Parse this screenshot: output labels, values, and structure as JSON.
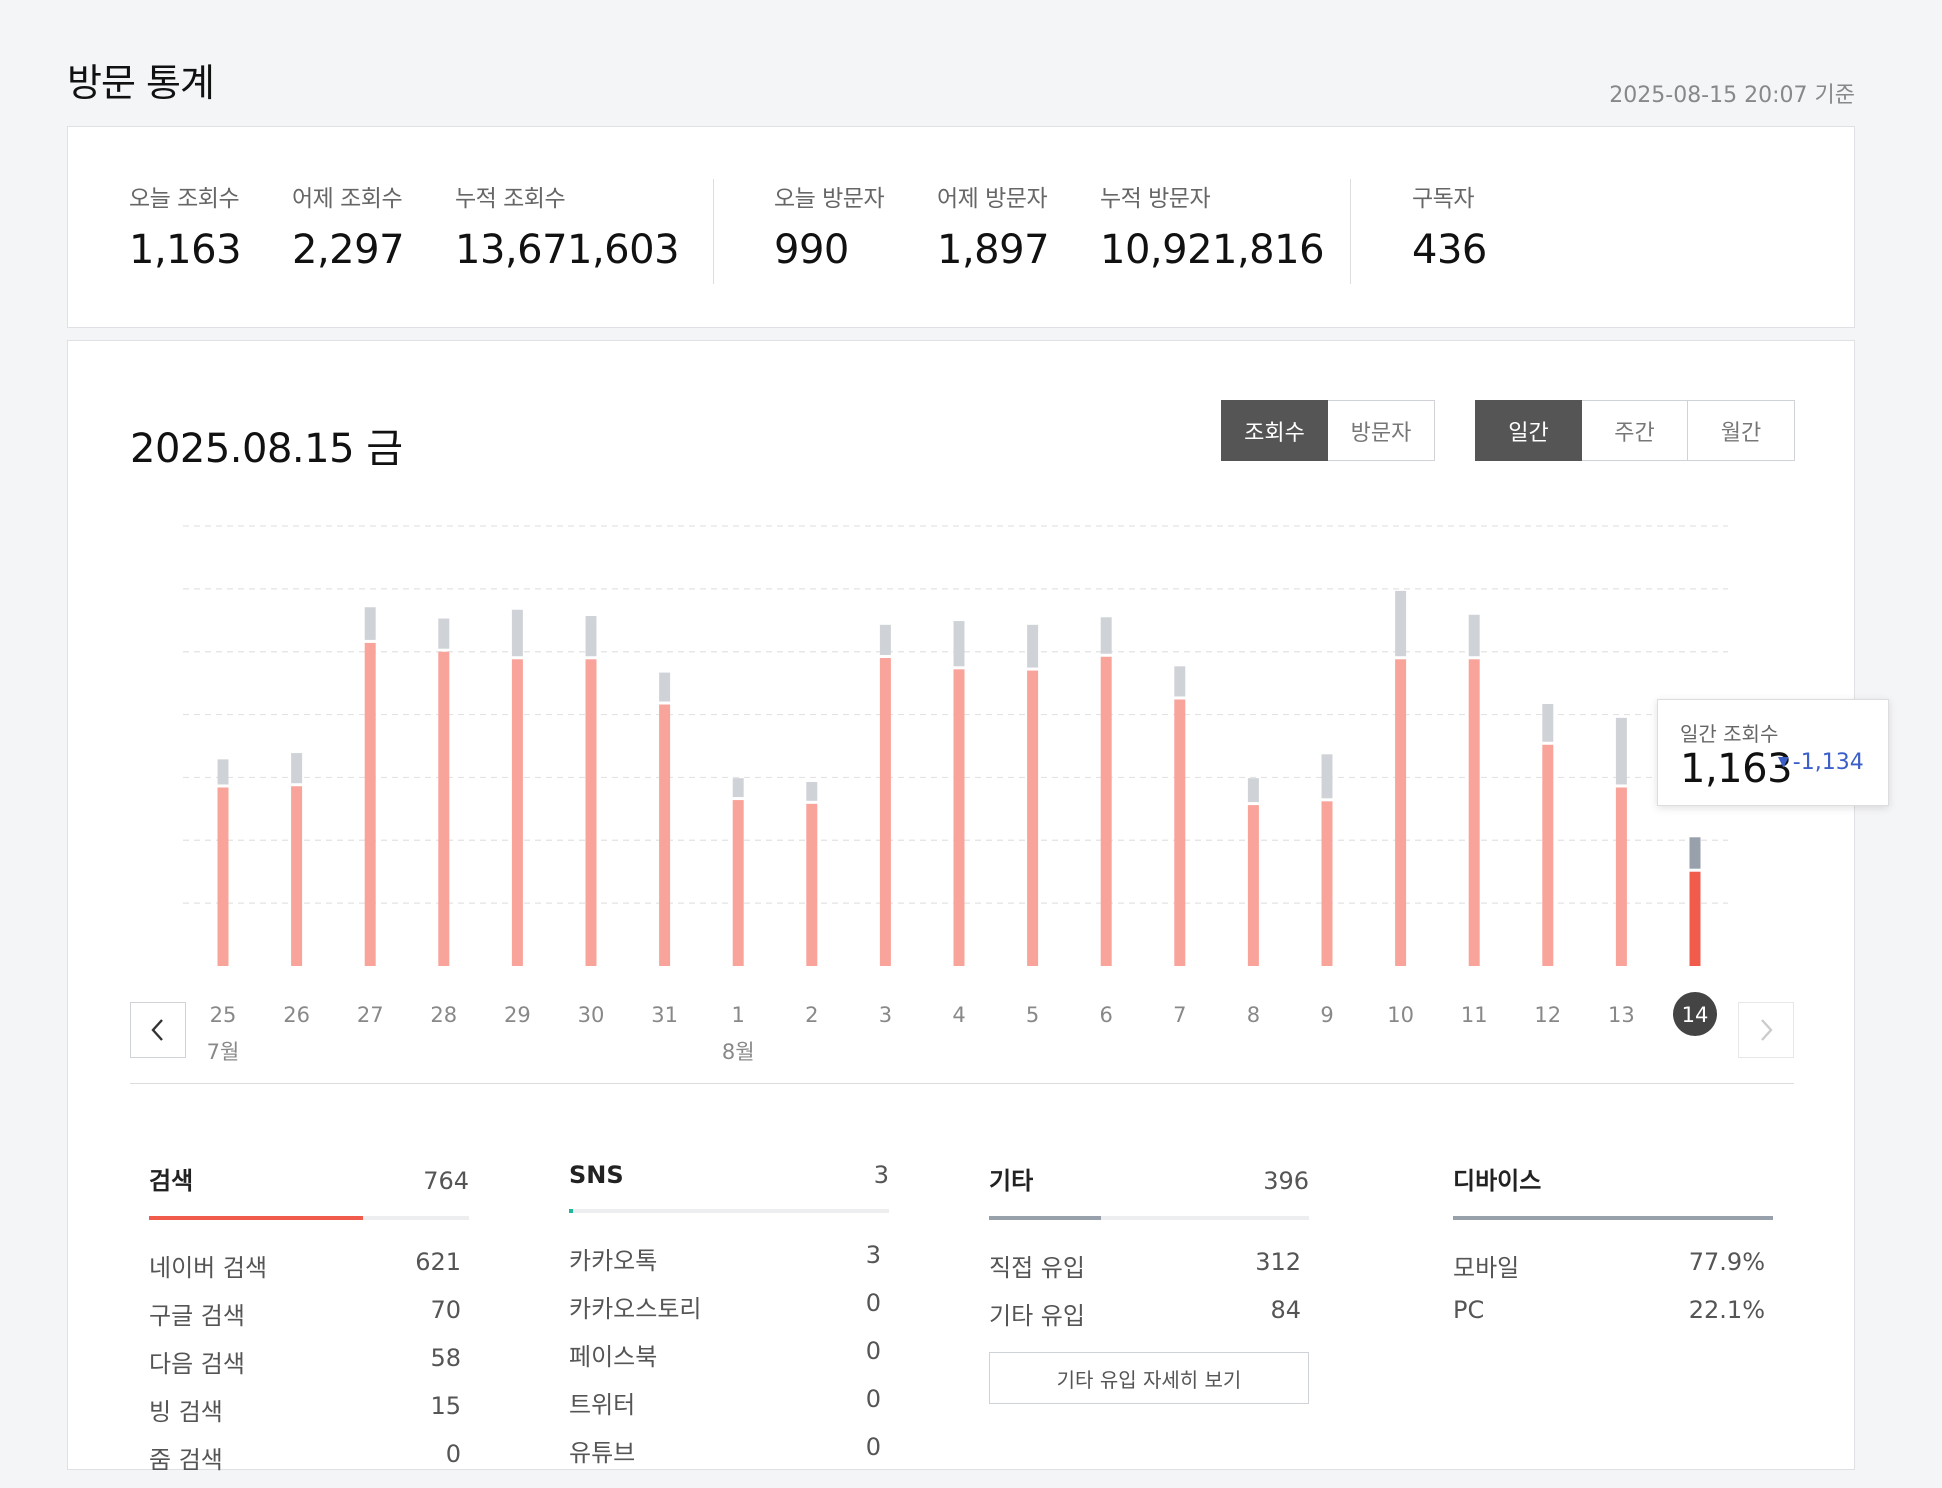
{
  "page": {
    "title": "방문 통계",
    "updated": "2025-08-15 20:07 기준"
  },
  "summary": [
    {
      "label": "오늘 조회수",
      "value": "1,163"
    },
    {
      "label": "어제 조회수",
      "value": "2,297"
    },
    {
      "label": "누적 조회수",
      "value": "13,671,603"
    },
    {
      "label": "오늘 방문자",
      "value": "990"
    },
    {
      "label": "어제 방문자",
      "value": "1,897"
    },
    {
      "label": "누적 방문자",
      "value": "10,921,816"
    },
    {
      "label": "구독자",
      "value": "436"
    }
  ],
  "panel": {
    "date": "2025.08.15 금",
    "metric_tabs": [
      {
        "label": "조회수",
        "active": true
      },
      {
        "label": "방문자",
        "active": false
      }
    ],
    "period_tabs": [
      {
        "label": "일간",
        "active": true
      },
      {
        "label": "주간",
        "active": false
      },
      {
        "label": "월간",
        "active": false
      }
    ],
    "nav": {
      "prev_icon": "chevron-left-icon",
      "next_icon": "chevron-right-icon"
    }
  },
  "chart_data": {
    "type": "bar",
    "stacked": true,
    "categories": [
      "25",
      "26",
      "27",
      "28",
      "29",
      "30",
      "31",
      "1",
      "2",
      "3",
      "4",
      "5",
      "6",
      "7",
      "8",
      "9",
      "10",
      "11",
      "12",
      "13",
      "14"
    ],
    "month_labels": [
      {
        "at": "25",
        "label": "7월"
      },
      {
        "at": "1",
        "label": "8월"
      }
    ],
    "selected": "14",
    "series": [
      {
        "color": "#f9a49b",
        "highlight_color": "#f15b4c",
        "values": [
          1420,
          1430,
          2570,
          2500,
          2440,
          2440,
          2080,
          1320,
          1290,
          2450,
          2360,
          2350,
          2460,
          2120,
          1280,
          1310,
          2440,
          2440,
          1760,
          1420,
          750
        ]
      },
      {
        "color": "#cfd3d8",
        "highlight_color": "#98a1ab",
        "values": [
          200,
          240,
          260,
          240,
          370,
          320,
          230,
          150,
          150,
          240,
          360,
          340,
          290,
          240,
          190,
          350,
          520,
          330,
          300,
          530,
          250
        ]
      }
    ],
    "ylim": [
      0,
      3500
    ],
    "grid": true
  },
  "tooltip": {
    "label": "일간 조회수",
    "value": "1,163",
    "delta": "-1,134",
    "delta_icon": "triangle-down-icon"
  },
  "categories": [
    {
      "name": "검색",
      "total": "764",
      "fraction": 0.67,
      "color": "#f15b4c",
      "rows": [
        {
          "label": "네이버 검색",
          "value": "621"
        },
        {
          "label": "구글 검색",
          "value": "70"
        },
        {
          "label": "다음 검색",
          "value": "58"
        },
        {
          "label": "빙 검색",
          "value": "15"
        },
        {
          "label": "줌 검색",
          "value": "0"
        }
      ]
    },
    {
      "name": "SNS",
      "total": "3",
      "fraction": 0.012,
      "color": "#1fb89a",
      "rows": [
        {
          "label": "카카오톡",
          "value": "3"
        },
        {
          "label": "카카오스토리",
          "value": "0"
        },
        {
          "label": "페이스북",
          "value": "0"
        },
        {
          "label": "트위터",
          "value": "0"
        },
        {
          "label": "유튜브",
          "value": "0"
        }
      ]
    },
    {
      "name": "기타",
      "total": "396",
      "fraction": 0.35,
      "color": "#98a1ab",
      "rows": [
        {
          "label": "직접 유입",
          "value": "312"
        },
        {
          "label": "기타 유입",
          "value": "84"
        }
      ],
      "button": "기타 유입 자세히 보기"
    },
    {
      "name": "디바이스",
      "total": "",
      "fraction": 1.0,
      "color": "#98a1ab",
      "rows": [
        {
          "label": "모바일",
          "value": "77.9%"
        },
        {
          "label": "PC",
          "value": "22.1%"
        }
      ]
    }
  ]
}
